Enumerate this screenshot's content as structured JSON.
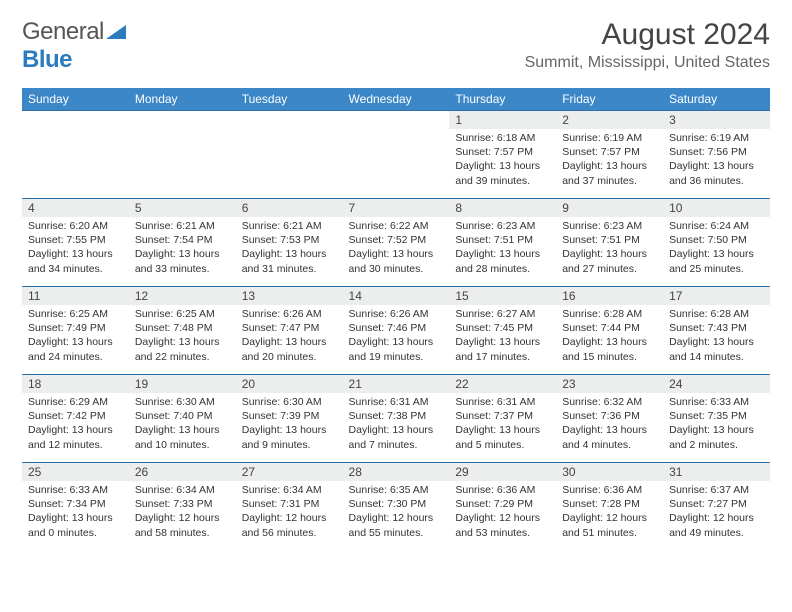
{
  "logo": {
    "text1": "General",
    "text2": "Blue"
  },
  "title": "August 2024",
  "location": "Summit, Mississippi, United States",
  "colors": {
    "header_bg": "#3b87c8",
    "header_text": "#ffffff",
    "row_border": "#2f6fa8",
    "daynum_bg": "#eceded",
    "logo_blue": "#2b7bbf"
  },
  "weekdays": [
    "Sunday",
    "Monday",
    "Tuesday",
    "Wednesday",
    "Thursday",
    "Friday",
    "Saturday"
  ],
  "weeks": [
    [
      null,
      null,
      null,
      null,
      {
        "n": "1",
        "sr": "6:18 AM",
        "ss": "7:57 PM",
        "dl": "13 hours and 39 minutes."
      },
      {
        "n": "2",
        "sr": "6:19 AM",
        "ss": "7:57 PM",
        "dl": "13 hours and 37 minutes."
      },
      {
        "n": "3",
        "sr": "6:19 AM",
        "ss": "7:56 PM",
        "dl": "13 hours and 36 minutes."
      }
    ],
    [
      {
        "n": "4",
        "sr": "6:20 AM",
        "ss": "7:55 PM",
        "dl": "13 hours and 34 minutes."
      },
      {
        "n": "5",
        "sr": "6:21 AM",
        "ss": "7:54 PM",
        "dl": "13 hours and 33 minutes."
      },
      {
        "n": "6",
        "sr": "6:21 AM",
        "ss": "7:53 PM",
        "dl": "13 hours and 31 minutes."
      },
      {
        "n": "7",
        "sr": "6:22 AM",
        "ss": "7:52 PM",
        "dl": "13 hours and 30 minutes."
      },
      {
        "n": "8",
        "sr": "6:23 AM",
        "ss": "7:51 PM",
        "dl": "13 hours and 28 minutes."
      },
      {
        "n": "9",
        "sr": "6:23 AM",
        "ss": "7:51 PM",
        "dl": "13 hours and 27 minutes."
      },
      {
        "n": "10",
        "sr": "6:24 AM",
        "ss": "7:50 PM",
        "dl": "13 hours and 25 minutes."
      }
    ],
    [
      {
        "n": "11",
        "sr": "6:25 AM",
        "ss": "7:49 PM",
        "dl": "13 hours and 24 minutes."
      },
      {
        "n": "12",
        "sr": "6:25 AM",
        "ss": "7:48 PM",
        "dl": "13 hours and 22 minutes."
      },
      {
        "n": "13",
        "sr": "6:26 AM",
        "ss": "7:47 PM",
        "dl": "13 hours and 20 minutes."
      },
      {
        "n": "14",
        "sr": "6:26 AM",
        "ss": "7:46 PM",
        "dl": "13 hours and 19 minutes."
      },
      {
        "n": "15",
        "sr": "6:27 AM",
        "ss": "7:45 PM",
        "dl": "13 hours and 17 minutes."
      },
      {
        "n": "16",
        "sr": "6:28 AM",
        "ss": "7:44 PM",
        "dl": "13 hours and 15 minutes."
      },
      {
        "n": "17",
        "sr": "6:28 AM",
        "ss": "7:43 PM",
        "dl": "13 hours and 14 minutes."
      }
    ],
    [
      {
        "n": "18",
        "sr": "6:29 AM",
        "ss": "7:42 PM",
        "dl": "13 hours and 12 minutes."
      },
      {
        "n": "19",
        "sr": "6:30 AM",
        "ss": "7:40 PM",
        "dl": "13 hours and 10 minutes."
      },
      {
        "n": "20",
        "sr": "6:30 AM",
        "ss": "7:39 PM",
        "dl": "13 hours and 9 minutes."
      },
      {
        "n": "21",
        "sr": "6:31 AM",
        "ss": "7:38 PM",
        "dl": "13 hours and 7 minutes."
      },
      {
        "n": "22",
        "sr": "6:31 AM",
        "ss": "7:37 PM",
        "dl": "13 hours and 5 minutes."
      },
      {
        "n": "23",
        "sr": "6:32 AM",
        "ss": "7:36 PM",
        "dl": "13 hours and 4 minutes."
      },
      {
        "n": "24",
        "sr": "6:33 AM",
        "ss": "7:35 PM",
        "dl": "13 hours and 2 minutes."
      }
    ],
    [
      {
        "n": "25",
        "sr": "6:33 AM",
        "ss": "7:34 PM",
        "dl": "13 hours and 0 minutes."
      },
      {
        "n": "26",
        "sr": "6:34 AM",
        "ss": "7:33 PM",
        "dl": "12 hours and 58 minutes."
      },
      {
        "n": "27",
        "sr": "6:34 AM",
        "ss": "7:31 PM",
        "dl": "12 hours and 56 minutes."
      },
      {
        "n": "28",
        "sr": "6:35 AM",
        "ss": "7:30 PM",
        "dl": "12 hours and 55 minutes."
      },
      {
        "n": "29",
        "sr": "6:36 AM",
        "ss": "7:29 PM",
        "dl": "12 hours and 53 minutes."
      },
      {
        "n": "30",
        "sr": "6:36 AM",
        "ss": "7:28 PM",
        "dl": "12 hours and 51 minutes."
      },
      {
        "n": "31",
        "sr": "6:37 AM",
        "ss": "7:27 PM",
        "dl": "12 hours and 49 minutes."
      }
    ]
  ]
}
